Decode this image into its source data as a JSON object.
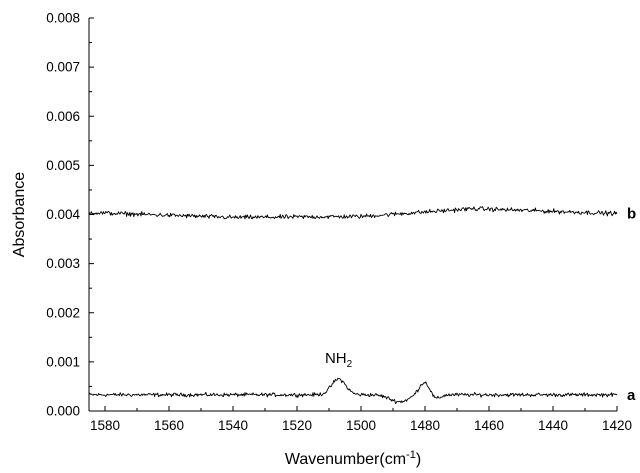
{
  "chart_data": {
    "type": "line",
    "xlabel": "Wavenumber(cm",
    "xlabel_sup": "-1",
    "xlabel_close": ")",
    "ylabel": "Absorbance",
    "xlim": [
      1585,
      1420
    ],
    "ylim": [
      0.0,
      0.008
    ],
    "x_reversed": true,
    "x_ticks": [
      1580,
      1560,
      1540,
      1520,
      1500,
      1480,
      1460,
      1440,
      1420
    ],
    "y_ticks": [
      "0.000",
      "0.001",
      "0.002",
      "0.003",
      "0.004",
      "0.005",
      "0.006",
      "0.007",
      "0.008"
    ],
    "grid": false,
    "series": [
      {
        "name": "a",
        "baseline": 0.00033,
        "noise": 6e-05,
        "peaks": [
          {
            "x": 1507,
            "height": 0.00032,
            "width": 2.2
          },
          {
            "x": 1480,
            "height": 0.00027,
            "width": 1.8
          }
        ],
        "dips": [
          {
            "x": 1488,
            "depth": 0.00014,
            "width": 3.0
          },
          {
            "x": 1477,
            "depth": 0.00012,
            "width": 1.5
          }
        ]
      },
      {
        "name": "b",
        "baseline": 0.004,
        "noise": 7e-05,
        "drift": [
          {
            "x": 1585,
            "dy": 4e-05
          },
          {
            "x": 1540,
            "dy": -6e-05
          },
          {
            "x": 1500,
            "dy": -4e-05
          },
          {
            "x": 1465,
            "dy": 0.00012
          },
          {
            "x": 1420,
            "dy": 2e-05
          }
        ]
      }
    ],
    "annotations": [
      {
        "text": "NH",
        "sub": "2",
        "x": 1507,
        "y": 0.00098
      }
    ],
    "line_color": "#000000"
  }
}
